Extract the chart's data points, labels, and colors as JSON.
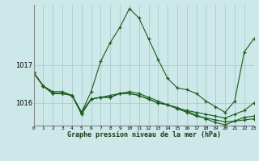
{
  "title": "Graphe pression niveau de la mer (hPa)",
  "bg_color": "#cce8e8",
  "grid_color": "#aacccc",
  "line_color": "#1a5c1a",
  "xlim": [
    0,
    23
  ],
  "ylim": [
    1015.4,
    1018.6
  ],
  "yticks": [
    1016,
    1017
  ],
  "xticks": [
    0,
    1,
    2,
    3,
    4,
    5,
    6,
    7,
    8,
    9,
    10,
    11,
    12,
    13,
    14,
    15,
    16,
    17,
    18,
    19,
    20,
    21,
    22,
    23
  ],
  "series": [
    [
      1016.8,
      1016.45,
      1016.25,
      1016.25,
      1016.2,
      1015.75,
      1016.3,
      1017.1,
      1017.6,
      1018.0,
      1018.5,
      1018.25,
      1017.7,
      1017.15,
      1016.65,
      1016.4,
      1016.35,
      1016.25,
      1016.05,
      1015.9,
      1015.75,
      1016.05,
      1017.35,
      1017.7
    ],
    [
      1016.8,
      1016.45,
      1016.25,
      1016.25,
      1016.2,
      1015.75,
      1016.1,
      1016.15,
      1016.15,
      1016.25,
      1016.25,
      1016.2,
      1016.1,
      1016.0,
      1015.95,
      1015.85,
      1015.8,
      1015.75,
      1015.7,
      1015.65,
      1015.6,
      1015.7,
      1015.8,
      1016.0
    ],
    [
      1016.8,
      1016.45,
      1016.25,
      1016.25,
      1016.2,
      1015.75,
      1016.1,
      1016.15,
      1016.15,
      1016.25,
      1016.25,
      1016.2,
      1016.1,
      1016.0,
      1015.95,
      1015.85,
      1015.75,
      1015.65,
      1015.6,
      1015.55,
      1015.5,
      1015.52,
      1015.55,
      1015.58
    ],
    [
      1016.8,
      1016.45,
      1016.3,
      1016.3,
      1016.2,
      1015.7,
      1016.1,
      1016.15,
      1016.2,
      1016.25,
      1016.3,
      1016.25,
      1016.15,
      1016.05,
      1015.95,
      1015.88,
      1015.78,
      1015.68,
      1015.58,
      1015.48,
      1015.42,
      1015.52,
      1015.62,
      1015.65
    ]
  ]
}
